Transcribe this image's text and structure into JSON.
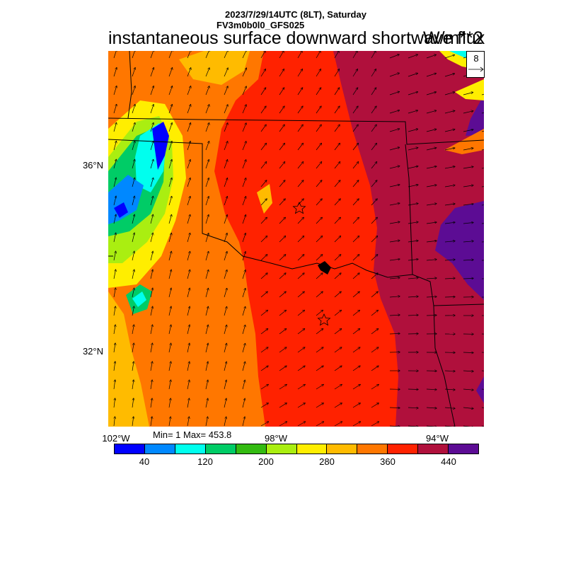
{
  "header": {
    "date_line": "2023/7/29/14UTC (8LT), Saturday",
    "model_line": "FV3m0b0l0_GFS025",
    "title": "instantaneous surface downward shortwave flux",
    "units": "W/m**2"
  },
  "reference_vector": {
    "value": "8"
  },
  "map": {
    "lat_labels": [
      "36°N",
      "32°N"
    ],
    "lon_labels": [
      "102°W",
      "98°W",
      "94°W"
    ],
    "markers": [
      "star",
      "star"
    ]
  },
  "stats": {
    "text": "Min= 1 Max= 453.8"
  },
  "colorbar": {
    "colors": [
      "#0000ff",
      "#0088ff",
      "#00ffee",
      "#00cc66",
      "#33bb11",
      "#aaee11",
      "#ffee00",
      "#ffbb00",
      "#ff7700",
      "#ff2200",
      "#b0103c",
      "#5c0c94"
    ],
    "labels": [
      "40",
      "120",
      "200",
      "280",
      "360",
      "440"
    ]
  }
}
